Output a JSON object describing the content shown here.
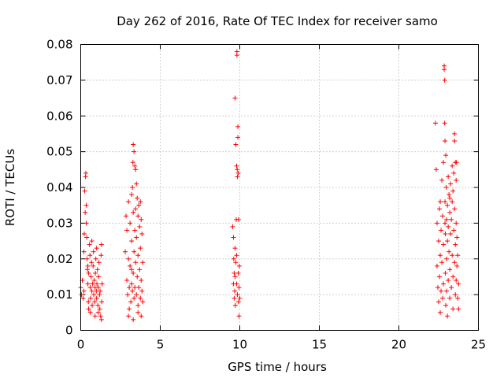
{
  "chart_data": {
    "type": "scatter",
    "title": "Day 262 of 2016, Rate Of TEC Index for receiver samo",
    "xlabel": "GPS time / hours",
    "ylabel": "ROTI / TECUs",
    "xlim": [
      0,
      25
    ],
    "ylim": [
      0,
      0.08
    ],
    "xticks": [
      0,
      5,
      10,
      15,
      20,
      25
    ],
    "xtick_labels": [
      "0",
      "5",
      "10",
      "15",
      "20",
      "25"
    ],
    "yticks": [
      0,
      0.01,
      0.02,
      0.03,
      0.04,
      0.05,
      0.06,
      0.07,
      0.08
    ],
    "ytick_labels": [
      "0",
      "0.01",
      "0.02",
      "0.03",
      "0.04",
      "0.05",
      "0.06",
      "0.07",
      "0.08"
    ],
    "grid": true,
    "marker": "+",
    "color": "#ff0000",
    "series": [
      {
        "name": "ROTI",
        "points": [
          [
            0.0,
            0.012
          ],
          [
            0.05,
            0.01
          ],
          [
            0.1,
            0.014
          ],
          [
            0.15,
            0.009
          ],
          [
            0.2,
            0.011
          ],
          [
            0.2,
            0.022
          ],
          [
            0.22,
            0.027
          ],
          [
            0.25,
            0.039
          ],
          [
            0.28,
            0.033
          ],
          [
            0.3,
            0.043
          ],
          [
            0.32,
            0.044
          ],
          [
            0.35,
            0.035
          ],
          [
            0.35,
            0.03
          ],
          [
            0.38,
            0.026
          ],
          [
            0.4,
            0.02
          ],
          [
            0.42,
            0.017
          ],
          [
            0.45,
            0.013
          ],
          [
            0.48,
            0.008
          ],
          [
            0.5,
            0.006
          ],
          [
            0.5,
            0.016
          ],
          [
            0.55,
            0.024
          ],
          [
            0.58,
            0.021
          ],
          [
            0.6,
            0.012
          ],
          [
            0.62,
            0.009
          ],
          [
            0.65,
            0.015
          ],
          [
            0.68,
            0.019
          ],
          [
            0.7,
            0.011
          ],
          [
            0.72,
            0.007
          ],
          [
            0.75,
            0.013
          ],
          [
            0.78,
            0.018
          ],
          [
            0.8,
            0.022
          ],
          [
            0.82,
            0.01
          ],
          [
            0.85,
            0.014
          ],
          [
            0.88,
            0.008
          ],
          [
            0.9,
            0.012
          ],
          [
            0.92,
            0.016
          ],
          [
            0.95,
            0.02
          ],
          [
            0.98,
            0.011
          ],
          [
            1.0,
            0.009
          ],
          [
            1.02,
            0.013
          ],
          [
            1.05,
            0.017
          ],
          [
            1.08,
            0.007
          ],
          [
            1.1,
            0.012
          ],
          [
            1.12,
            0.015
          ],
          [
            1.15,
            0.019
          ],
          [
            1.18,
            0.01
          ],
          [
            1.2,
            0.006
          ],
          [
            1.22,
            0.011
          ],
          [
            1.25,
            0.004
          ],
          [
            1.28,
            0.021
          ],
          [
            1.3,
            0.024
          ],
          [
            1.3,
            0.003
          ],
          [
            1.32,
            0.008
          ],
          [
            1.35,
            0.013
          ],
          [
            0.6,
            0.005
          ],
          [
            0.9,
            0.004
          ],
          [
            1.1,
            0.005
          ],
          [
            0.7,
            0.025
          ],
          [
            0.45,
            0.018
          ],
          [
            1.0,
            0.023
          ],
          [
            2.8,
            0.022
          ],
          [
            2.85,
            0.032
          ],
          [
            2.9,
            0.028
          ],
          [
            2.9,
            0.014
          ],
          [
            2.95,
            0.01
          ],
          [
            3.0,
            0.036
          ],
          [
            3.0,
            0.02
          ],
          [
            3.05,
            0.012
          ],
          [
            3.05,
            0.006
          ],
          [
            3.1,
            0.03
          ],
          [
            3.1,
            0.018
          ],
          [
            3.15,
            0.008
          ],
          [
            3.2,
            0.038
          ],
          [
            3.2,
            0.025
          ],
          [
            3.2,
            0.013
          ],
          [
            3.25,
            0.04
          ],
          [
            3.25,
            0.011
          ],
          [
            3.28,
            0.047
          ],
          [
            3.3,
            0.052
          ],
          [
            3.3,
            0.033
          ],
          [
            3.3,
            0.016
          ],
          [
            3.35,
            0.05
          ],
          [
            3.35,
            0.022
          ],
          [
            3.35,
            0.009
          ],
          [
            3.4,
            0.046
          ],
          [
            3.4,
            0.028
          ],
          [
            3.4,
            0.012
          ],
          [
            3.45,
            0.045
          ],
          [
            3.45,
            0.034
          ],
          [
            3.45,
            0.019
          ],
          [
            3.5,
            0.041
          ],
          [
            3.5,
            0.026
          ],
          [
            3.5,
            0.01
          ],
          [
            3.55,
            0.037
          ],
          [
            3.55,
            0.015
          ],
          [
            3.6,
            0.032
          ],
          [
            3.6,
            0.021
          ],
          [
            3.6,
            0.007
          ],
          [
            3.65,
            0.035
          ],
          [
            3.65,
            0.012
          ],
          [
            3.7,
            0.029
          ],
          [
            3.7,
            0.017
          ],
          [
            3.75,
            0.036
          ],
          [
            3.75,
            0.023
          ],
          [
            3.75,
            0.009
          ],
          [
            3.8,
            0.031
          ],
          [
            3.8,
            0.014
          ],
          [
            3.8,
            0.004
          ],
          [
            3.85,
            0.027
          ],
          [
            3.85,
            0.011
          ],
          [
            3.9,
            0.019
          ],
          [
            3.9,
            0.008
          ],
          [
            3.3,
            0.003
          ],
          [
            3.0,
            0.004
          ],
          [
            3.6,
            0.005
          ],
          [
            3.2,
            0.017
          ],
          [
            9.55,
            0.029
          ],
          [
            9.6,
            0.026
          ],
          [
            9.6,
            0.013
          ],
          [
            9.62,
            0.02
          ],
          [
            9.65,
            0.016
          ],
          [
            9.65,
            0.009
          ],
          [
            9.68,
            0.011
          ],
          [
            9.7,
            0.065
          ],
          [
            9.7,
            0.023
          ],
          [
            9.72,
            0.007
          ],
          [
            9.75,
            0.019
          ],
          [
            9.75,
            0.052
          ],
          [
            9.78,
            0.031
          ],
          [
            9.8,
            0.046
          ],
          [
            9.8,
            0.013
          ],
          [
            9.82,
            0.078
          ],
          [
            9.82,
            0.077
          ],
          [
            9.84,
            0.045
          ],
          [
            9.85,
            0.043
          ],
          [
            9.85,
            0.01
          ],
          [
            9.88,
            0.054
          ],
          [
            9.88,
            0.057
          ],
          [
            9.9,
            0.044
          ],
          [
            9.9,
            0.016
          ],
          [
            9.92,
            0.031
          ],
          [
            9.92,
            0.008
          ],
          [
            9.95,
            0.012
          ],
          [
            9.95,
            0.004
          ],
          [
            9.97,
            0.018
          ],
          [
            10.0,
            0.009
          ],
          [
            9.8,
            0.021
          ],
          [
            9.7,
            0.015
          ],
          [
            22.3,
            0.058
          ],
          [
            22.35,
            0.045
          ],
          [
            22.4,
            0.03
          ],
          [
            22.4,
            0.018
          ],
          [
            22.45,
            0.012
          ],
          [
            22.5,
            0.025
          ],
          [
            22.5,
            0.008
          ],
          [
            22.55,
            0.034
          ],
          [
            22.55,
            0.015
          ],
          [
            22.6,
            0.021
          ],
          [
            22.6,
            0.005
          ],
          [
            22.65,
            0.028
          ],
          [
            22.65,
            0.011
          ],
          [
            22.7,
            0.042
          ],
          [
            22.7,
            0.019
          ],
          [
            22.75,
            0.032
          ],
          [
            22.75,
            0.009
          ],
          [
            22.8,
            0.047
          ],
          [
            22.8,
            0.024
          ],
          [
            22.8,
            0.013
          ],
          [
            22.85,
            0.073
          ],
          [
            22.85,
            0.074
          ],
          [
            22.88,
            0.07
          ],
          [
            22.88,
            0.058
          ],
          [
            22.9,
            0.053
          ],
          [
            22.9,
            0.036
          ],
          [
            22.92,
            0.027
          ],
          [
            22.92,
            0.016
          ],
          [
            22.95,
            0.049
          ],
          [
            22.95,
            0.007
          ],
          [
            22.98,
            0.04
          ],
          [
            23.0,
            0.031
          ],
          [
            23.0,
            0.02
          ],
          [
            23.0,
            0.011
          ],
          [
            23.05,
            0.035
          ],
          [
            23.05,
            0.025
          ],
          [
            23.05,
            0.004
          ],
          [
            23.1,
            0.043
          ],
          [
            23.1,
            0.029
          ],
          [
            23.1,
            0.014
          ],
          [
            23.15,
            0.038
          ],
          [
            23.15,
            0.022
          ],
          [
            23.2,
            0.033
          ],
          [
            23.2,
            0.017
          ],
          [
            23.2,
            0.009
          ],
          [
            23.25,
            0.041
          ],
          [
            23.25,
            0.027
          ],
          [
            23.3,
            0.031
          ],
          [
            23.3,
            0.012
          ],
          [
            23.35,
            0.046
          ],
          [
            23.35,
            0.036
          ],
          [
            23.35,
            0.021
          ],
          [
            23.4,
            0.039
          ],
          [
            23.4,
            0.015
          ],
          [
            23.4,
            0.006
          ],
          [
            23.45,
            0.044
          ],
          [
            23.45,
            0.028
          ],
          [
            23.5,
            0.053
          ],
          [
            23.5,
            0.055
          ],
          [
            23.5,
            0.034
          ],
          [
            23.5,
            0.019
          ],
          [
            23.55,
            0.047
          ],
          [
            23.55,
            0.024
          ],
          [
            23.55,
            0.01
          ],
          [
            23.6,
            0.042
          ],
          [
            23.6,
            0.03
          ],
          [
            23.6,
            0.014
          ],
          [
            23.62,
            0.047
          ],
          [
            23.65,
            0.026
          ],
          [
            23.65,
            0.018
          ],
          [
            23.7,
            0.021
          ],
          [
            23.7,
            0.009
          ],
          [
            23.75,
            0.013
          ],
          [
            23.75,
            0.006
          ],
          [
            22.6,
            0.036
          ],
          [
            23.2,
            0.037
          ],
          [
            22.9,
            0.03
          ]
        ]
      }
    ]
  }
}
